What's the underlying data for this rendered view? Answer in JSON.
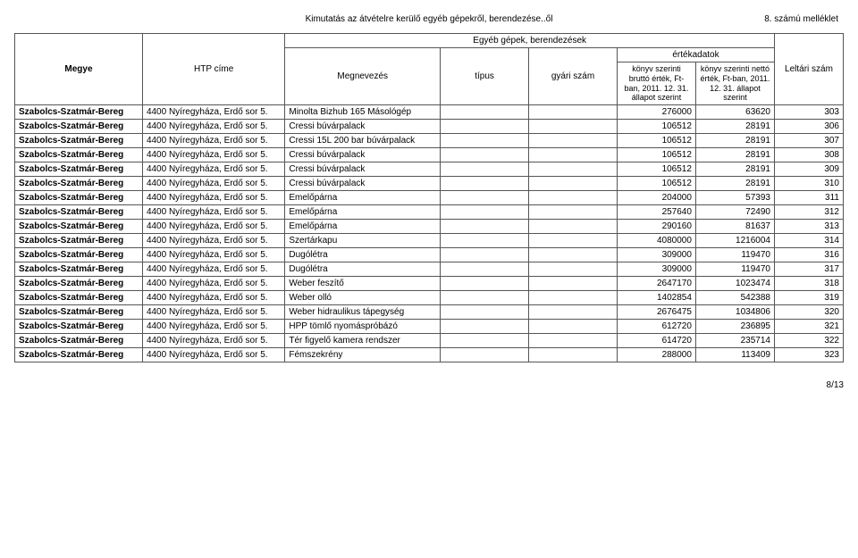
{
  "header": {
    "title": "Kimutatás az átvételre kerülő egyéb gépekről, berendezése..ől",
    "attachment": "8. számú melléklet"
  },
  "tableHeaders": {
    "egyeb": "Egyéb gépek, berendezések",
    "ertekadatok": "értékadatok",
    "megye": "Megye",
    "htp": "HTP címe",
    "megnevezes": "Megnevezés",
    "tipus": "típus",
    "gyari": "gyári szám",
    "brutto": "könyv szerinti bruttó érték, Ft-ban, 2011. 12. 31. állapot szerint",
    "netto": "könyv szerinti nettó érték, Ft-ban, 2011. 12. 31. állapot szerint",
    "leltari": "Leltári szám"
  },
  "rows": [
    {
      "megye": "Szabolcs-Szatmár-Bereg",
      "htp": "4400 Nyíregyháza, Erdő sor 5.",
      "megn": "Minolta Bizhub 165 Másológép",
      "tipus": "",
      "gyari": "",
      "brutto": "276000",
      "netto": "63620",
      "lelt": "303"
    },
    {
      "megye": "Szabolcs-Szatmár-Bereg",
      "htp": "4400 Nyíregyháza, Erdő sor 5.",
      "megn": "Cressi búvárpalack",
      "tipus": "",
      "gyari": "",
      "brutto": "106512",
      "netto": "28191",
      "lelt": "306"
    },
    {
      "megye": "Szabolcs-Szatmár-Bereg",
      "htp": "4400 Nyíregyháza, Erdő sor 5.",
      "megn": "Cressi 15L 200 bar búvárpalack",
      "tipus": "",
      "gyari": "",
      "brutto": "106512",
      "netto": "28191",
      "lelt": "307"
    },
    {
      "megye": "Szabolcs-Szatmár-Bereg",
      "htp": "4400 Nyíregyháza, Erdő sor 5.",
      "megn": "Cressi búvárpalack",
      "tipus": "",
      "gyari": "",
      "brutto": "106512",
      "netto": "28191",
      "lelt": "308"
    },
    {
      "megye": "Szabolcs-Szatmár-Bereg",
      "htp": "4400 Nyíregyháza, Erdő sor 5.",
      "megn": "Cressi búvárpalack",
      "tipus": "",
      "gyari": "",
      "brutto": "106512",
      "netto": "28191",
      "lelt": "309"
    },
    {
      "megye": "Szabolcs-Szatmár-Bereg",
      "htp": "4400 Nyíregyháza, Erdő sor 5.",
      "megn": "Cressi búvárpalack",
      "tipus": "",
      "gyari": "",
      "brutto": "106512",
      "netto": "28191",
      "lelt": "310"
    },
    {
      "megye": "Szabolcs-Szatmár-Bereg",
      "htp": "4400 Nyíregyháza, Erdő sor 5.",
      "megn": "Emelőpárna",
      "tipus": "",
      "gyari": "",
      "brutto": "204000",
      "netto": "57393",
      "lelt": "311"
    },
    {
      "megye": "Szabolcs-Szatmár-Bereg",
      "htp": "4400 Nyíregyháza, Erdő sor 5.",
      "megn": "Emelőpárna",
      "tipus": "",
      "gyari": "",
      "brutto": "257640",
      "netto": "72490",
      "lelt": "312"
    },
    {
      "megye": "Szabolcs-Szatmár-Bereg",
      "htp": "4400 Nyíregyháza, Erdő sor 5.",
      "megn": "Emelőpárna",
      "tipus": "",
      "gyari": "",
      "brutto": "290160",
      "netto": "81637",
      "lelt": "313"
    },
    {
      "megye": "Szabolcs-Szatmár-Bereg",
      "htp": "4400 Nyíregyháza, Erdő sor 5.",
      "megn": "Szertárkapu",
      "tipus": "",
      "gyari": "",
      "brutto": "4080000",
      "netto": "1216004",
      "lelt": "314"
    },
    {
      "megye": "Szabolcs-Szatmár-Bereg",
      "htp": "4400 Nyíregyháza, Erdő sor 5.",
      "megn": "Dugólétra",
      "tipus": "",
      "gyari": "",
      "brutto": "309000",
      "netto": "119470",
      "lelt": "316"
    },
    {
      "megye": "Szabolcs-Szatmár-Bereg",
      "htp": "4400 Nyíregyháza, Erdő sor 5.",
      "megn": "Dugólétra",
      "tipus": "",
      "gyari": "",
      "brutto": "309000",
      "netto": "119470",
      "lelt": "317"
    },
    {
      "megye": "Szabolcs-Szatmár-Bereg",
      "htp": "4400 Nyíregyháza, Erdő sor 5.",
      "megn": "Weber feszítő",
      "tipus": "",
      "gyari": "",
      "brutto": "2647170",
      "netto": "1023474",
      "lelt": "318"
    },
    {
      "megye": "Szabolcs-Szatmár-Bereg",
      "htp": "4400 Nyíregyháza, Erdő sor 5.",
      "megn": "Weber olló",
      "tipus": "",
      "gyari": "",
      "brutto": "1402854",
      "netto": "542388",
      "lelt": "319"
    },
    {
      "megye": "Szabolcs-Szatmár-Bereg",
      "htp": "4400 Nyíregyháza, Erdő sor 5.",
      "megn": "Weber hidraulikus tápegység",
      "tipus": "",
      "gyari": "",
      "brutto": "2676475",
      "netto": "1034806",
      "lelt": "320"
    },
    {
      "megye": "Szabolcs-Szatmár-Bereg",
      "htp": "4400 Nyíregyháza, Erdő sor 5.",
      "megn": "HPP tömlő nyomáspróbázó",
      "tipus": "",
      "gyari": "",
      "brutto": "612720",
      "netto": "236895",
      "lelt": "321"
    },
    {
      "megye": "Szabolcs-Szatmár-Bereg",
      "htp": "4400 Nyíregyháza, Erdő sor 5.",
      "megn": "Tér figyelő kamera rendszer",
      "tipus": "",
      "gyari": "",
      "brutto": "614720",
      "netto": "235714",
      "lelt": "322"
    },
    {
      "megye": "Szabolcs-Szatmár-Bereg",
      "htp": "4400 Nyíregyháza, Erdő sor 5.",
      "megn": "Fémszekrény",
      "tipus": "",
      "gyari": "",
      "brutto": "288000",
      "netto": "113409",
      "lelt": "323"
    }
  ],
  "footer": {
    "page": "8/13"
  }
}
